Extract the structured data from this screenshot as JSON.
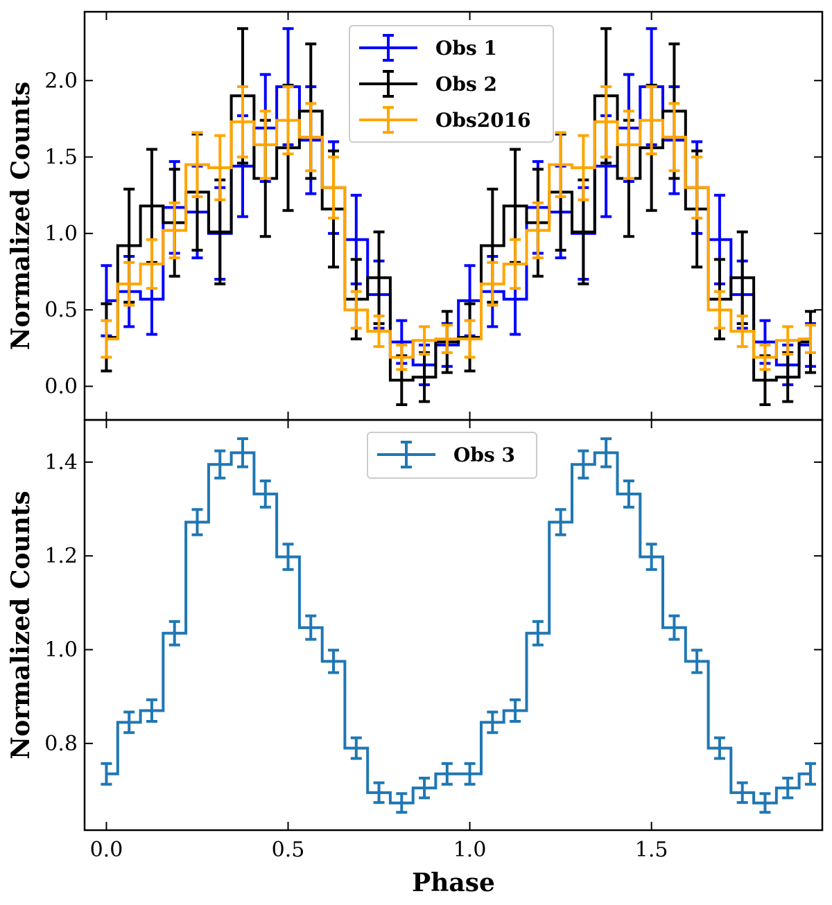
{
  "chart_data": [
    {
      "type": "line",
      "drawstyle": "steps-mid",
      "panel": "top",
      "ylabel": "Normalized Counts",
      "xlim": [
        -0.06,
        1.97
      ],
      "ylim": [
        -0.22,
        2.45
      ],
      "yticks": [
        0.0,
        0.5,
        1.0,
        1.5,
        2.0
      ],
      "ytick_labels": [
        "0.0",
        "0.5",
        "1.0",
        "1.5",
        "2.0"
      ],
      "legend_position": "top-center",
      "x": [
        0.0,
        0.0625,
        0.125,
        0.1875,
        0.25,
        0.3125,
        0.375,
        0.4375,
        0.5,
        0.5625,
        0.625,
        0.6875,
        0.75,
        0.8125,
        0.875,
        0.9375,
        1.0,
        1.0625,
        1.125,
        1.1875,
        1.25,
        1.3125,
        1.375,
        1.4375,
        1.5,
        1.5625,
        1.625,
        1.6875,
        1.75,
        1.8125,
        1.875,
        1.9375
      ],
      "series": [
        {
          "name": "Obs 1",
          "color": "#0000ff",
          "values": [
            0.56,
            0.62,
            0.57,
            1.17,
            1.14,
            1.0,
            1.44,
            1.69,
            1.96,
            1.61,
            1.3,
            0.96,
            0.6,
            0.29,
            0.14,
            0.27,
            0.56,
            0.62,
            0.57,
            1.17,
            1.14,
            1.0,
            1.44,
            1.69,
            1.96,
            1.61,
            1.3,
            0.96,
            0.6,
            0.29,
            0.14,
            0.27
          ],
          "errors": [
            0.23,
            0.23,
            0.23,
            0.3,
            0.3,
            0.3,
            0.33,
            0.35,
            0.38,
            0.35,
            0.3,
            0.29,
            0.22,
            0.14,
            0.13,
            0.14,
            0.23,
            0.23,
            0.23,
            0.3,
            0.3,
            0.3,
            0.33,
            0.35,
            0.38,
            0.35,
            0.3,
            0.29,
            0.22,
            0.14,
            0.13,
            0.14
          ]
        },
        {
          "name": "Obs 2",
          "color": "#000000",
          "values": [
            0.32,
            0.92,
            1.18,
            1.07,
            1.27,
            1.01,
            1.9,
            1.36,
            1.56,
            1.8,
            1.16,
            0.57,
            0.71,
            0.04,
            0.06,
            0.29,
            0.32,
            0.92,
            1.18,
            1.07,
            1.27,
            1.01,
            1.9,
            1.36,
            1.56,
            1.8,
            1.16,
            0.57,
            0.71,
            0.04,
            0.06,
            0.29
          ],
          "errors": [
            0.22,
            0.37,
            0.37,
            0.35,
            0.38,
            0.34,
            0.44,
            0.38,
            0.41,
            0.44,
            0.38,
            0.26,
            0.3,
            0.16,
            0.16,
            0.2,
            0.22,
            0.37,
            0.37,
            0.35,
            0.38,
            0.34,
            0.44,
            0.38,
            0.41,
            0.44,
            0.38,
            0.26,
            0.3,
            0.16,
            0.16,
            0.2
          ]
        },
        {
          "name": "Obs2016",
          "color": "#ffa500",
          "values": [
            0.31,
            0.67,
            0.8,
            1.02,
            1.45,
            1.43,
            1.73,
            1.58,
            1.74,
            1.63,
            1.3,
            0.5,
            0.36,
            0.19,
            0.3,
            0.31,
            0.31,
            0.67,
            0.8,
            1.02,
            1.45,
            1.43,
            1.73,
            1.58,
            1.74,
            1.63,
            1.3,
            0.5,
            0.36,
            0.19,
            0.3,
            0.31
          ],
          "errors": [
            0.12,
            0.14,
            0.16,
            0.18,
            0.21,
            0.21,
            0.23,
            0.22,
            0.22,
            0.22,
            0.2,
            0.12,
            0.1,
            0.08,
            0.09,
            0.09,
            0.12,
            0.14,
            0.16,
            0.18,
            0.21,
            0.21,
            0.23,
            0.22,
            0.22,
            0.22,
            0.2,
            0.12,
            0.1,
            0.08,
            0.09,
            0.09
          ]
        }
      ]
    },
    {
      "type": "line",
      "drawstyle": "steps-mid",
      "panel": "bottom",
      "xlabel": "Phase",
      "ylabel": "Normalized Counts",
      "xlim": [
        -0.06,
        1.97
      ],
      "ylim": [
        0.615,
        1.49
      ],
      "xticks": [
        0.0,
        0.5,
        1.0,
        1.5
      ],
      "xtick_labels": [
        "0.0",
        "0.5",
        "1.0",
        "1.5"
      ],
      "yticks": [
        0.8,
        1.0,
        1.2,
        1.4
      ],
      "ytick_labels": [
        "0.8",
        "1.0",
        "1.2",
        "1.4"
      ],
      "legend_position": "top-center",
      "x": [
        0.0,
        0.0625,
        0.125,
        0.1875,
        0.25,
        0.3125,
        0.375,
        0.4375,
        0.5,
        0.5625,
        0.625,
        0.6875,
        0.75,
        0.8125,
        0.875,
        0.9375,
        1.0,
        1.0625,
        1.125,
        1.1875,
        1.25,
        1.3125,
        1.375,
        1.4375,
        1.5,
        1.5625,
        1.625,
        1.6875,
        1.75,
        1.8125,
        1.875,
        1.9375
      ],
      "series": [
        {
          "name": "Obs 3",
          "color": "#1f77b4",
          "values": [
            0.735,
            0.845,
            0.87,
            1.035,
            1.272,
            1.395,
            1.42,
            1.332,
            1.198,
            1.047,
            0.975,
            0.79,
            0.695,
            0.673,
            0.705,
            0.735,
            0.735,
            0.845,
            0.87,
            1.035,
            1.272,
            1.395,
            1.42,
            1.332,
            1.198,
            1.047,
            0.975,
            0.79,
            0.695,
            0.673,
            0.705,
            0.735
          ],
          "errors": [
            0.022,
            0.022,
            0.023,
            0.025,
            0.027,
            0.029,
            0.03,
            0.028,
            0.027,
            0.025,
            0.024,
            0.022,
            0.021,
            0.02,
            0.021,
            0.022,
            0.022,
            0.022,
            0.023,
            0.025,
            0.027,
            0.029,
            0.03,
            0.028,
            0.027,
            0.025,
            0.024,
            0.022,
            0.021,
            0.02,
            0.021,
            0.022
          ]
        }
      ]
    }
  ]
}
